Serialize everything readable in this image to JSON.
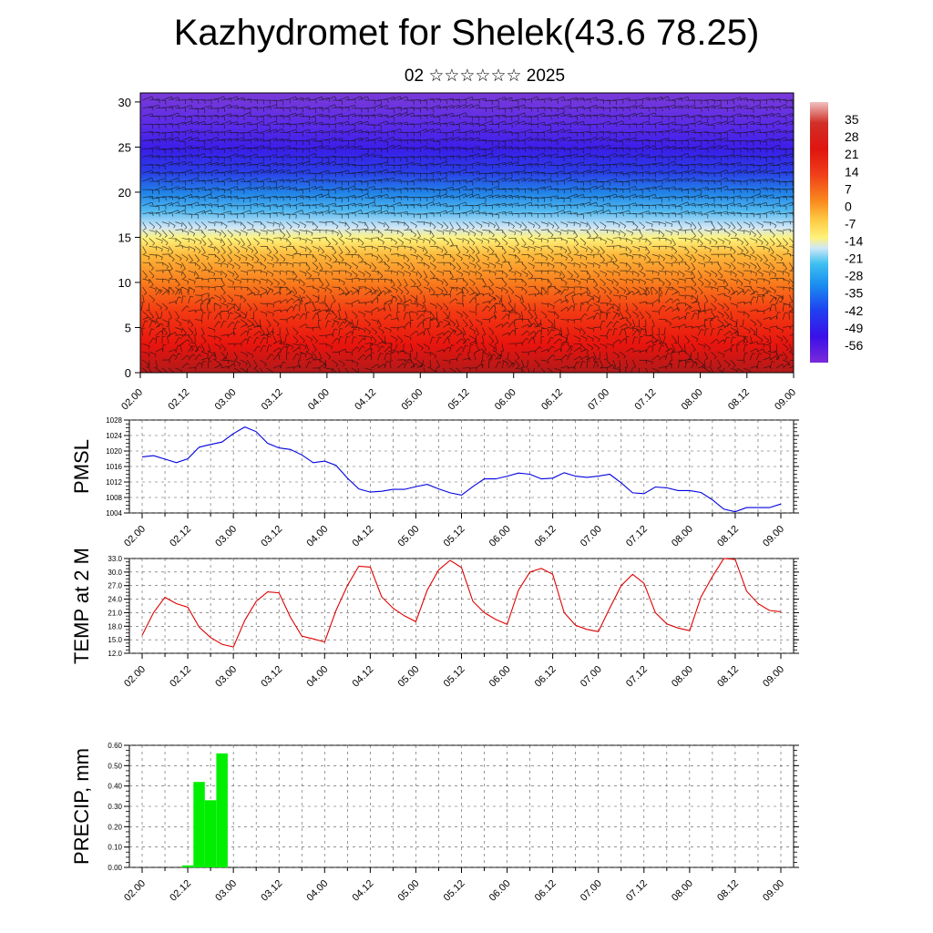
{
  "title": "Kazhydromet for Shelek(43.6 78.25)",
  "subtitle": "02 ☆☆☆☆☆☆ 2025",
  "colors": {
    "pmsl_line": "#0000e0",
    "temp_line": "#e00000",
    "precip_bar": "#00ee00",
    "grid": "#555555",
    "wind_barb": "#111111"
  },
  "chart_data": [
    {
      "type": "heatmap",
      "name": "vertical-cross-section",
      "title": "",
      "ylabel": "",
      "ylim": [
        0,
        31
      ],
      "yticks": [
        "0",
        "5",
        "10",
        "15",
        "20",
        "25",
        "30"
      ],
      "xlim": [
        0,
        14
      ],
      "xticks": [
        "02.00",
        "02.12",
        "03.00",
        "03.12",
        "04.00",
        "04.12",
        "05.00",
        "05.12",
        "06.00",
        "06.12",
        "07.00",
        "07.12",
        "08.00",
        "08.12",
        "09.00"
      ],
      "colorbar": {
        "labels": [
          "35",
          "28",
          "21",
          "14",
          "7",
          "0",
          "-7",
          "-14",
          "-21",
          "-28",
          "-35",
          "-42",
          "-49",
          "-56"
        ],
        "min": -63,
        "max": 42
      },
      "overlay": "wind barbs"
    },
    {
      "type": "line",
      "name": "pmsl",
      "ylabel": "PMSL",
      "ylim": [
        1004,
        1028
      ],
      "yticks": [
        "1004",
        "1008",
        "1012",
        "1016",
        "1020",
        "1024",
        "1028"
      ],
      "xticks": [
        "02.00",
        "02.12",
        "03.00",
        "03.12",
        "04.00",
        "04.12",
        "05.00",
        "05.12",
        "06.00",
        "06.12",
        "07.00",
        "07.12",
        "08.00",
        "08.12",
        "09.00"
      ],
      "x_start": 0,
      "x_step": 0.25,
      "values": [
        1018.5,
        1018.8,
        1017.9,
        1017.0,
        1018.0,
        1021.0,
        1021.7,
        1022.3,
        1024.5,
        1026.2,
        1025.0,
        1022.0,
        1020.8,
        1020.4,
        1019.0,
        1017.0,
        1017.4,
        1016.3,
        1013.0,
        1010.2,
        1009.4,
        1009.6,
        1010.1,
        1010.1,
        1010.8,
        1011.4,
        1010.2,
        1009.2,
        1008.6,
        1010.8,
        1012.8,
        1012.8,
        1013.5,
        1014.3,
        1014.0,
        1012.8,
        1013.0,
        1014.4,
        1013.5,
        1013.2,
        1013.5,
        1014.0,
        1011.8,
        1009.2,
        1009.0,
        1010.7,
        1010.5,
        1009.8,
        1009.8,
        1009.3,
        1007.4,
        1005.0,
        1004.3,
        1005.4,
        1005.4,
        1005.4,
        1006.3
      ]
    },
    {
      "type": "line",
      "name": "temperature",
      "ylabel": "TEMP at 2 M",
      "ylim": [
        12.0,
        33.0
      ],
      "yticks": [
        "12.0",
        "15.0",
        "18.0",
        "21.0",
        "24.0",
        "27.0",
        "30.0",
        "33.0"
      ],
      "xticks": [
        "02.00",
        "02.12",
        "03.00",
        "03.12",
        "04.00",
        "04.12",
        "05.00",
        "05.12",
        "06.00",
        "06.12",
        "07.00",
        "07.12",
        "08.00",
        "08.12",
        "09.00"
      ],
      "x_start": 0,
      "x_step": 0.25,
      "values": [
        16.0,
        21.0,
        24.4,
        23.0,
        22.2,
        17.8,
        15.5,
        14.0,
        13.4,
        19.3,
        23.5,
        25.6,
        25.4,
        20.0,
        15.8,
        15.2,
        14.5,
        21.5,
        27.0,
        31.3,
        31.1,
        24.5,
        22.0,
        20.3,
        19.0,
        26.0,
        30.5,
        32.6,
        31.0,
        23.5,
        21.0,
        19.5,
        18.4,
        26.0,
        30.0,
        30.8,
        29.5,
        21.0,
        18.2,
        17.3,
        16.8,
        22.0,
        27.0,
        29.5,
        27.5,
        21.0,
        18.5,
        17.6,
        17.0,
        24.5,
        29.0,
        33.0,
        32.8,
        25.8,
        23.0,
        21.5,
        21.2
      ]
    },
    {
      "type": "bar",
      "name": "precipitation",
      "ylabel": "PRECIP, mm",
      "ylim": [
        0.0,
        0.6
      ],
      "yticks": [
        "0.00",
        "0.10",
        "0.20",
        "0.30",
        "0.40",
        "0.50",
        "0.60"
      ],
      "xticks": [
        "02.00",
        "02.12",
        "03.00",
        "03.12",
        "04.00",
        "04.12",
        "05.00",
        "05.12",
        "06.00",
        "06.12",
        "07.00",
        "07.12",
        "08.00",
        "08.12",
        "09.00"
      ],
      "bars": [
        {
          "x": 1.0,
          "value": 0.01
        },
        {
          "x": 1.25,
          "value": 0.42
        },
        {
          "x": 1.5,
          "value": 0.33
        },
        {
          "x": 1.75,
          "value": 0.56
        }
      ]
    }
  ]
}
